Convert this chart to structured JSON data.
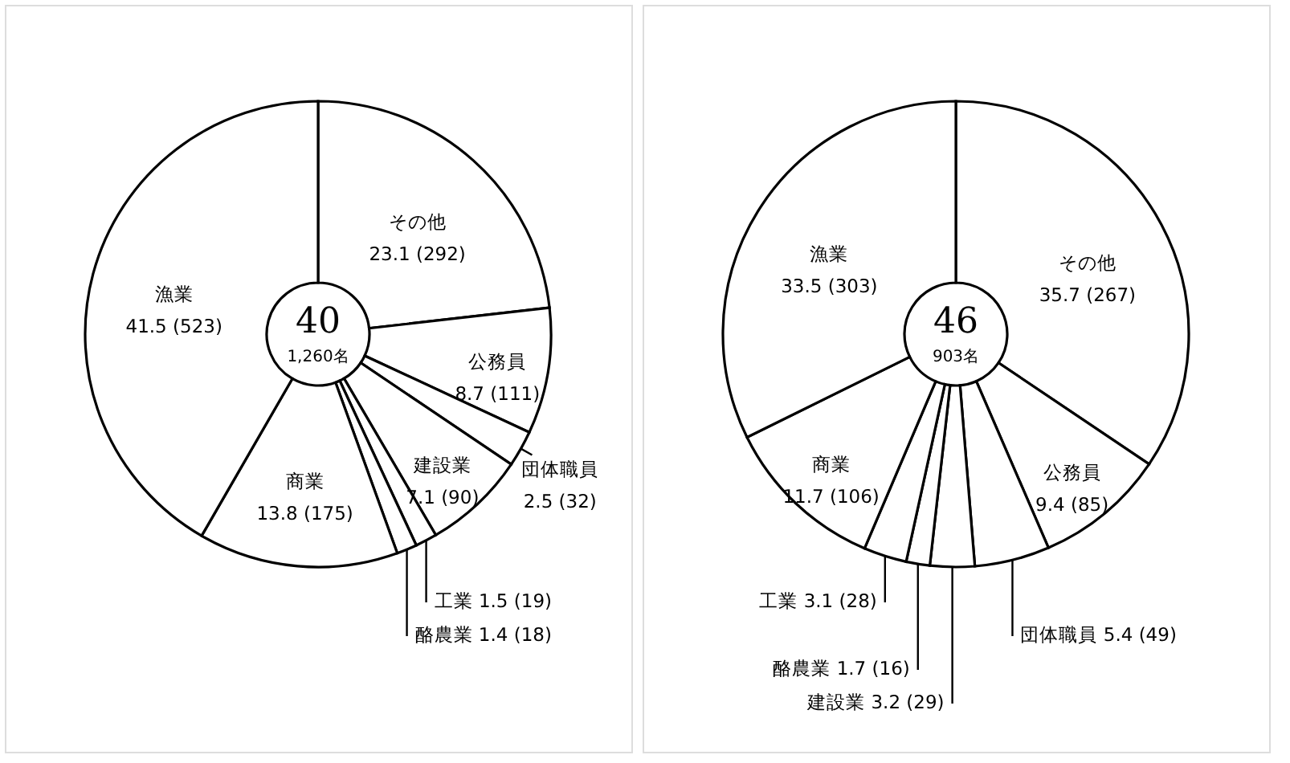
{
  "chart_data": [
    {
      "type": "donut",
      "title": "40",
      "subtitle": "1,260名",
      "categories": [
        "その他",
        "公務員",
        "団体職員",
        "建設業",
        "工業",
        "酪農業",
        "商業",
        "漁業"
      ],
      "values": [
        23.1,
        8.7,
        2.5,
        7.1,
        1.5,
        1.4,
        13.8,
        41.5
      ],
      "value_labels": [
        "23.1 (292)",
        "8.7 (111)",
        "2.5 (32)",
        "7.1 (90)",
        "1.5 (19)",
        "1.4 (18)",
        "13.8 (175)",
        "41.5 (523)"
      ],
      "colors": [
        "#ffffff",
        "#ffffff",
        "#ffffff",
        "#ffffff",
        "#ffffff",
        "#ffffff",
        "#ffffff",
        "#ffffff"
      ]
    },
    {
      "type": "donut",
      "title": "46",
      "subtitle": "903名",
      "categories": [
        "その他",
        "公務員",
        "団体職員",
        "建設業",
        "酪農業",
        "工業",
        "商業",
        "漁業"
      ],
      "values": [
        35.7,
        9.4,
        5.4,
        3.2,
        1.7,
        3.1,
        11.7,
        33.5
      ],
      "value_labels": [
        "35.7 (267)",
        "9.4 (85)",
        "5.4 (49)",
        "3.2 (29)",
        "1.7 (16)",
        "3.1 (28)",
        "11.7 (106)",
        "33.5 (303)"
      ],
      "colors": [
        "#ffffff",
        "#ffffff",
        "#ffffff",
        "#ffffff",
        "#ffffff",
        "#ffffff",
        "#ffffff",
        "#ffffff"
      ]
    }
  ]
}
